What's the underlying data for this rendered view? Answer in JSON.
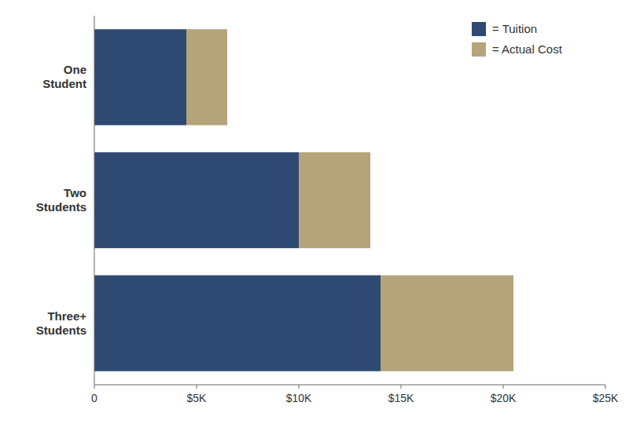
{
  "chart_data": {
    "type": "bar",
    "orientation": "horizontal",
    "stacked": true,
    "categories": [
      "One\nStudent",
      "Two\nStudents",
      "Three+\nStudents"
    ],
    "series": [
      {
        "name": "= Tuition",
        "color": "#2E4A72",
        "values": [
          4500,
          10000,
          14000
        ]
      },
      {
        "name": "= Actual Cost",
        "color": "#B5A47A",
        "values": [
          2000,
          3500,
          6500
        ]
      }
    ],
    "xlim": [
      0,
      25000
    ],
    "xticks": [
      0,
      {
        "value": 5000,
        "label": "$5K"
      },
      {
        "value": 10000,
        "label": "$10K"
      },
      {
        "value": 15000,
        "label": "$15K"
      },
      {
        "value": 20000,
        "label": "$20K"
      },
      {
        "value": 25000,
        "label": "$25K"
      }
    ],
    "legend": "upper right",
    "grid": false
  }
}
